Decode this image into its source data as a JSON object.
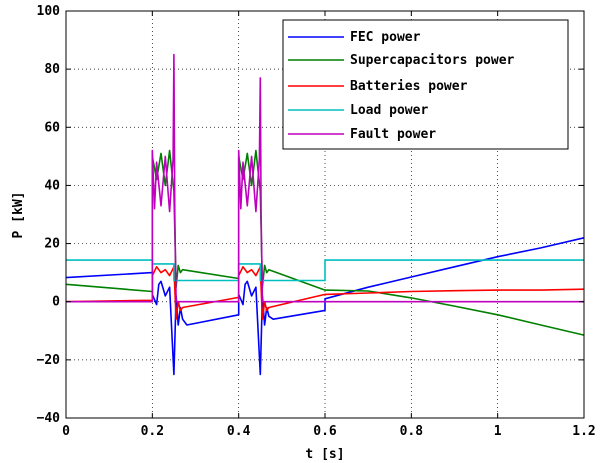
{
  "chart_data": {
    "type": "line",
    "xlabel": "t [s]",
    "ylabel": "P [kW]",
    "xlim": [
      0,
      1.2
    ],
    "ylim": [
      -40,
      100
    ],
    "xticks": [
      "0",
      "0.2",
      "0.4",
      "0.6",
      "0.8",
      "1",
      "1.2"
    ],
    "yticks": [
      "−40",
      "−20",
      "0",
      "20",
      "40",
      "60",
      "80",
      "100"
    ],
    "grid": true,
    "legend_position": "top-right",
    "series": [
      {
        "name": "FEC power",
        "color": "#0000ff",
        "x": [
          0,
          0.2,
          0.2,
          0.21,
          0.215,
          0.22,
          0.23,
          0.24,
          0.25,
          0.255,
          0.26,
          0.265,
          0.27,
          0.28,
          0.4,
          0.4,
          0.41,
          0.415,
          0.42,
          0.43,
          0.44,
          0.45,
          0.455,
          0.46,
          0.465,
          0.47,
          0.48,
          0.6,
          0.6,
          0.7,
          0.8,
          0.9,
          1.0,
          1.1,
          1.2
        ],
        "y": [
          8.3,
          10,
          2.5,
          -1,
          6,
          7,
          2,
          5,
          -25,
          2,
          -8,
          -2,
          -6,
          -8,
          -4.5,
          2.5,
          -1,
          6,
          7,
          2,
          5,
          -25,
          2,
          -8,
          -2,
          -5,
          -6,
          -3,
          1,
          5,
          8.5,
          12,
          15.5,
          18.5,
          22
        ]
      },
      {
        "name": "Supercapacitors power",
        "color": "#008000",
        "x": [
          0,
          0.2,
          0.2,
          0.21,
          0.22,
          0.23,
          0.24,
          0.25,
          0.255,
          0.26,
          0.265,
          0.27,
          0.4,
          0.4,
          0.41,
          0.42,
          0.43,
          0.44,
          0.45,
          0.455,
          0.46,
          0.465,
          0.47,
          0.6,
          0.7,
          0.8,
          0.9,
          1.0,
          1.1,
          1.2
        ],
        "y": [
          6,
          3.5,
          50,
          42,
          51,
          40,
          52,
          38,
          5,
          12.5,
          10,
          11,
          8,
          50,
          42,
          51,
          40,
          52,
          38,
          5,
          12.5,
          10,
          11,
          4,
          3.7,
          1.3,
          -1.5,
          -4.5,
          -8,
          -11.5
        ]
      },
      {
        "name": "Batteries power",
        "color": "#ff0000",
        "x": [
          0,
          0.2,
          0.2,
          0.21,
          0.22,
          0.23,
          0.24,
          0.25,
          0.255,
          0.26,
          0.265,
          0.27,
          0.4,
          0.4,
          0.41,
          0.42,
          0.43,
          0.44,
          0.45,
          0.455,
          0.46,
          0.465,
          0.47,
          0.6,
          0.7,
          0.8,
          0.9,
          1.0,
          1.1,
          1.2
        ],
        "y": [
          0,
          0.5,
          9,
          12,
          10,
          11,
          9,
          12,
          -6,
          0,
          -3,
          -2,
          1.5,
          9,
          12,
          10,
          11,
          9,
          12,
          -6,
          0,
          -3,
          -2,
          2.5,
          3,
          3.5,
          3.8,
          4,
          4,
          4.3
        ]
      },
      {
        "name": "Load power",
        "color": "#00bfbf",
        "x": [
          0,
          0.2,
          0.2,
          0.25,
          0.25,
          0.4,
          0.4,
          0.45,
          0.45,
          0.6,
          0.6,
          1.2
        ],
        "y": [
          14.3,
          14.3,
          13,
          13,
          7.3,
          7.3,
          13,
          13,
          7.3,
          7.3,
          14.3,
          14.3
        ]
      },
      {
        "name": "Fault power",
        "color": "#bf00bf",
        "x": [
          0,
          0.2,
          0.2,
          0.205,
          0.21,
          0.22,
          0.23,
          0.24,
          0.248,
          0.25,
          0.252,
          0.255,
          0.26,
          0.4,
          0.4,
          0.405,
          0.41,
          0.42,
          0.43,
          0.44,
          0.448,
          0.45,
          0.452,
          0.455,
          0.46,
          1.2
        ],
        "y": [
          0,
          0,
          52,
          32,
          48,
          33,
          50,
          31,
          49,
          85,
          30,
          0,
          0,
          0,
          52,
          32,
          48,
          33,
          50,
          31,
          49,
          77,
          30,
          0,
          0,
          0
        ]
      }
    ]
  }
}
